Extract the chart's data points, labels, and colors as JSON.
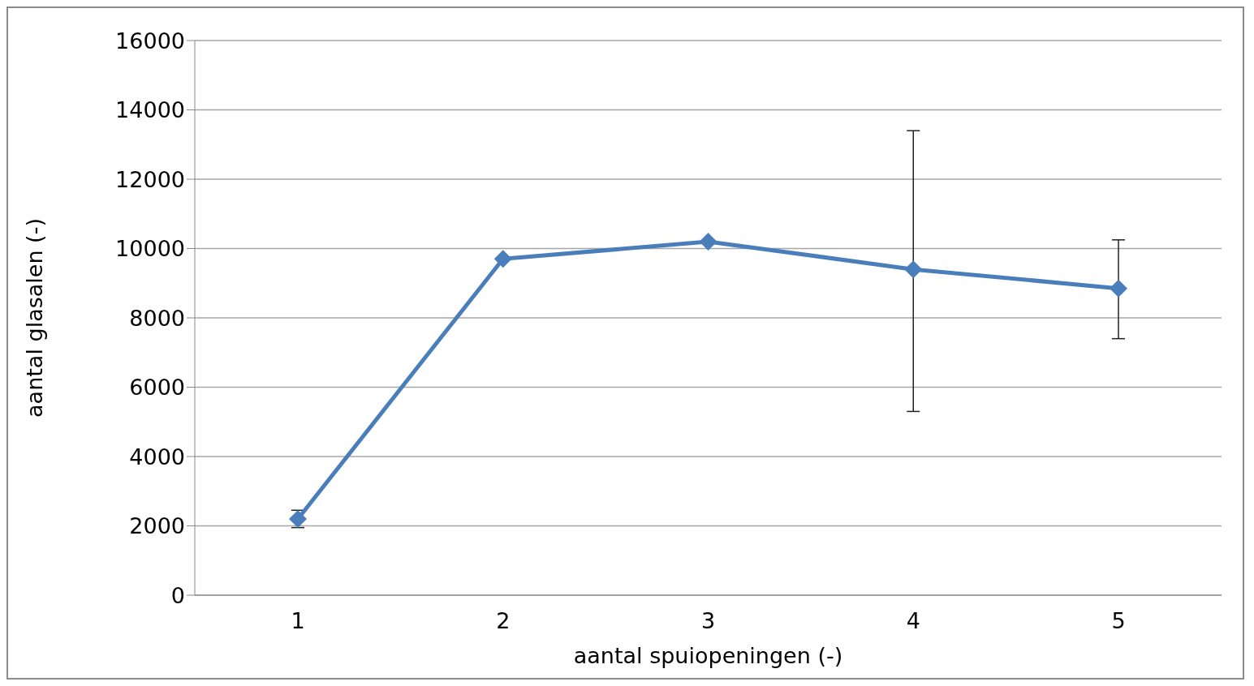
{
  "chart_data": {
    "type": "line",
    "xlabel": "aantal spuiopeningen (-)",
    "ylabel": "aantal glasalen (-)",
    "categories": [
      "1",
      "2",
      "3",
      "4",
      "5"
    ],
    "series": [
      {
        "color": "#4a7ebb",
        "values": [
          2200,
          9700,
          10200,
          9400,
          8850
        ],
        "errors": [
          [
            1950,
            2450
          ],
          null,
          null,
          [
            5300,
            13400
          ],
          [
            7400,
            10250
          ]
        ]
      }
    ],
    "ylim": [
      0,
      16000
    ],
    "yticks": [
      0,
      2000,
      4000,
      6000,
      8000,
      10000,
      12000,
      14000,
      16000
    ],
    "grid": "y",
    "legend": false,
    "marker": "diamond",
    "line_style": "solid"
  }
}
